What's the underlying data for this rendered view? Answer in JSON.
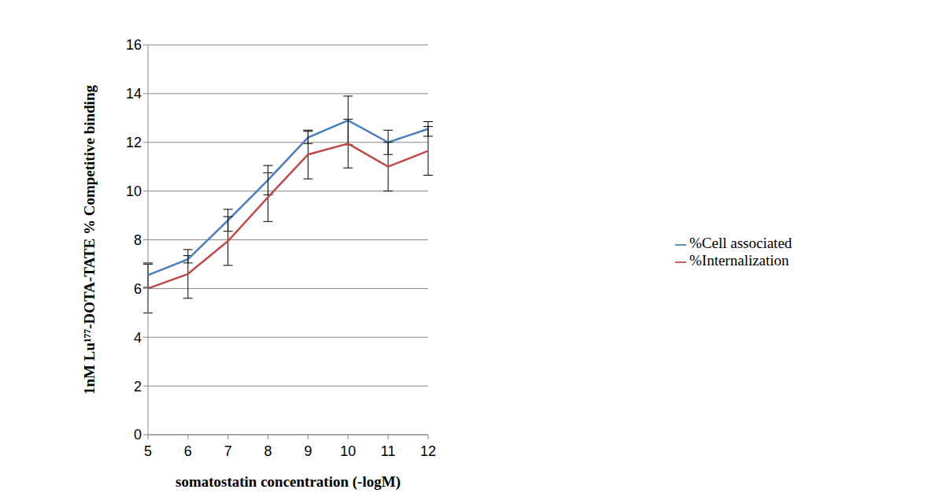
{
  "chart_data": {
    "type": "line",
    "x_label": "somatostatin concentration (-logM)",
    "y_label": "1nM Lu¹⁷⁷-DOTA-TATE % Competitive binding",
    "categories": [
      "5",
      "6",
      "7",
      "8",
      "9",
      "10",
      "11",
      "12"
    ],
    "series": [
      {
        "name": "%Cell associated",
        "color": "#4a7ebb",
        "marker": "none",
        "values": [
          6.55,
          7.2,
          8.8,
          10.45,
          12.2,
          12.9,
          12.0,
          12.55
        ],
        "errors": [
          0.5,
          0.15,
          0.45,
          0.6,
          0.25,
          1.0,
          0.5,
          0.3
        ]
      },
      {
        "name": "%Internalization",
        "color": "#be4b48",
        "marker": "none",
        "values": [
          6.0,
          6.6,
          7.95,
          9.75,
          11.5,
          11.95,
          11.0,
          11.65
        ],
        "errors": [
          1.0,
          1.0,
          1.0,
          1.0,
          1.0,
          1.0,
          1.0,
          1.0
        ]
      }
    ],
    "ylim": [
      0,
      16
    ],
    "yticks": [
      0,
      2,
      4,
      6,
      8,
      10,
      12,
      14,
      16
    ],
    "grid": true,
    "legend": "right"
  }
}
